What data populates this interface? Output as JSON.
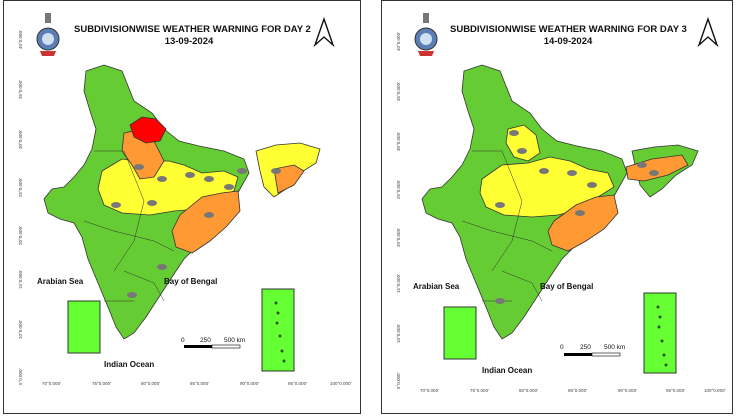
{
  "colors": {
    "no_warning": "#66cc33",
    "watch": "#ffff33",
    "alert": "#ff9933",
    "warning": "#ff0000",
    "inset_fill": "#66ff33",
    "border": "#333333"
  },
  "icons": [
    "emblem-icon",
    "north-arrow-icon",
    "thunderstorm-icon",
    "heavy-rain-icon"
  ],
  "panels": [
    {
      "title": "SUBDIVISIONWISE WEATHER WARNING FOR DAY 2",
      "date": "13-09-2024",
      "sea_labels": {
        "arabian": "Arabian Sea",
        "bengal": "Bay of Bengal",
        "indian": "Indian Ocean"
      },
      "scale": {
        "zero": "0",
        "mid": "250",
        "end": "500 km"
      },
      "x_ticks": [
        "70°0.000'",
        "75°0.000'",
        "80°0.000'",
        "85°0.000'",
        "90°0.000'",
        "95°0.000'",
        "100°0.000'"
      ],
      "y_ticks": [
        "40°0.000'",
        "35°0.000'",
        "30°0.000'",
        "25°0.000'",
        "20°0.000'",
        "15°0.000'",
        "10°0.000'",
        "5°0.000'"
      ],
      "warning_levels": {
        "north_hills": "warning",
        "central_north": "alert",
        "east": "alert",
        "northeast": "alert",
        "central": "watch",
        "rest": "no_warning"
      }
    },
    {
      "title": "SUBDIVISIONWISE WEATHER WARNING FOR DAY 3",
      "date": "14-09-2024",
      "sea_labels": {
        "arabian": "Arabian Sea",
        "bengal": "Bay of Bengal",
        "indian": "Indian Ocean"
      },
      "scale": {
        "zero": "0",
        "mid": "250",
        "end": "500 km"
      },
      "x_ticks": [
        "70°0.000'",
        "75°0.000'",
        "80°0.000'",
        "85°0.000'",
        "90°0.000'",
        "95°0.000'",
        "100°0.000'"
      ],
      "y_ticks": [
        "40°0.000'",
        "35°0.000'",
        "30°0.000'",
        "25°0.000'",
        "20°0.000'",
        "15°0.000'",
        "10°0.000'",
        "5°0.000'"
      ],
      "warning_levels": {
        "north_hills": "no_warning",
        "central_north": "watch",
        "east": "alert",
        "northeast": "alert",
        "central": "watch",
        "rest": "no_warning"
      }
    }
  ]
}
